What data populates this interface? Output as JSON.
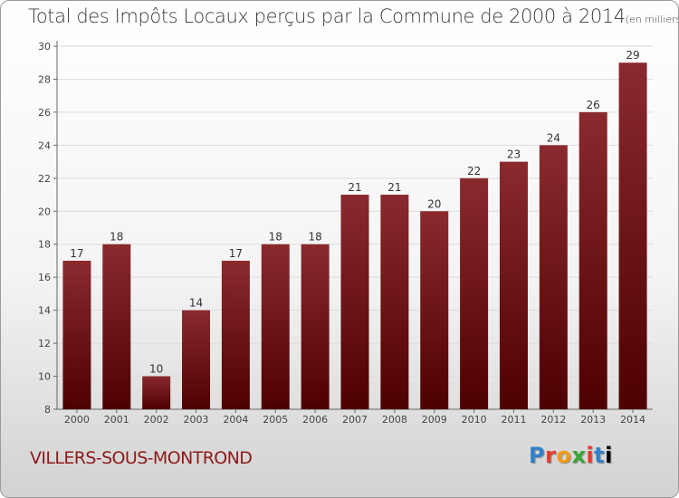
{
  "chart_data": {
    "type": "bar",
    "title": "Total des Impôts Locaux perçus par la Commune de 2000 à 2014",
    "unit_note": "(en milliers d'€)",
    "categories": [
      "2000",
      "2001",
      "2002",
      "2003",
      "2004",
      "2005",
      "2006",
      "2007",
      "2008",
      "2009",
      "2010",
      "2011",
      "2012",
      "2013",
      "2014"
    ],
    "values": [
      17,
      18,
      10,
      14,
      17,
      18,
      18,
      21,
      21,
      20,
      22,
      23,
      24,
      26,
      29
    ],
    "ylim": [
      8,
      30
    ],
    "yticks": [
      8,
      10,
      12,
      14,
      16,
      18,
      20,
      22,
      24,
      26,
      28,
      30
    ],
    "grid": true,
    "bar_color_top": "#8a2a2e",
    "bar_color_bottom": "#4e0000"
  },
  "commune": "VILLERS-SOUS-MONTROND",
  "logo": [
    "P",
    "r",
    "o",
    "x",
    "i",
    "t",
    "i"
  ]
}
